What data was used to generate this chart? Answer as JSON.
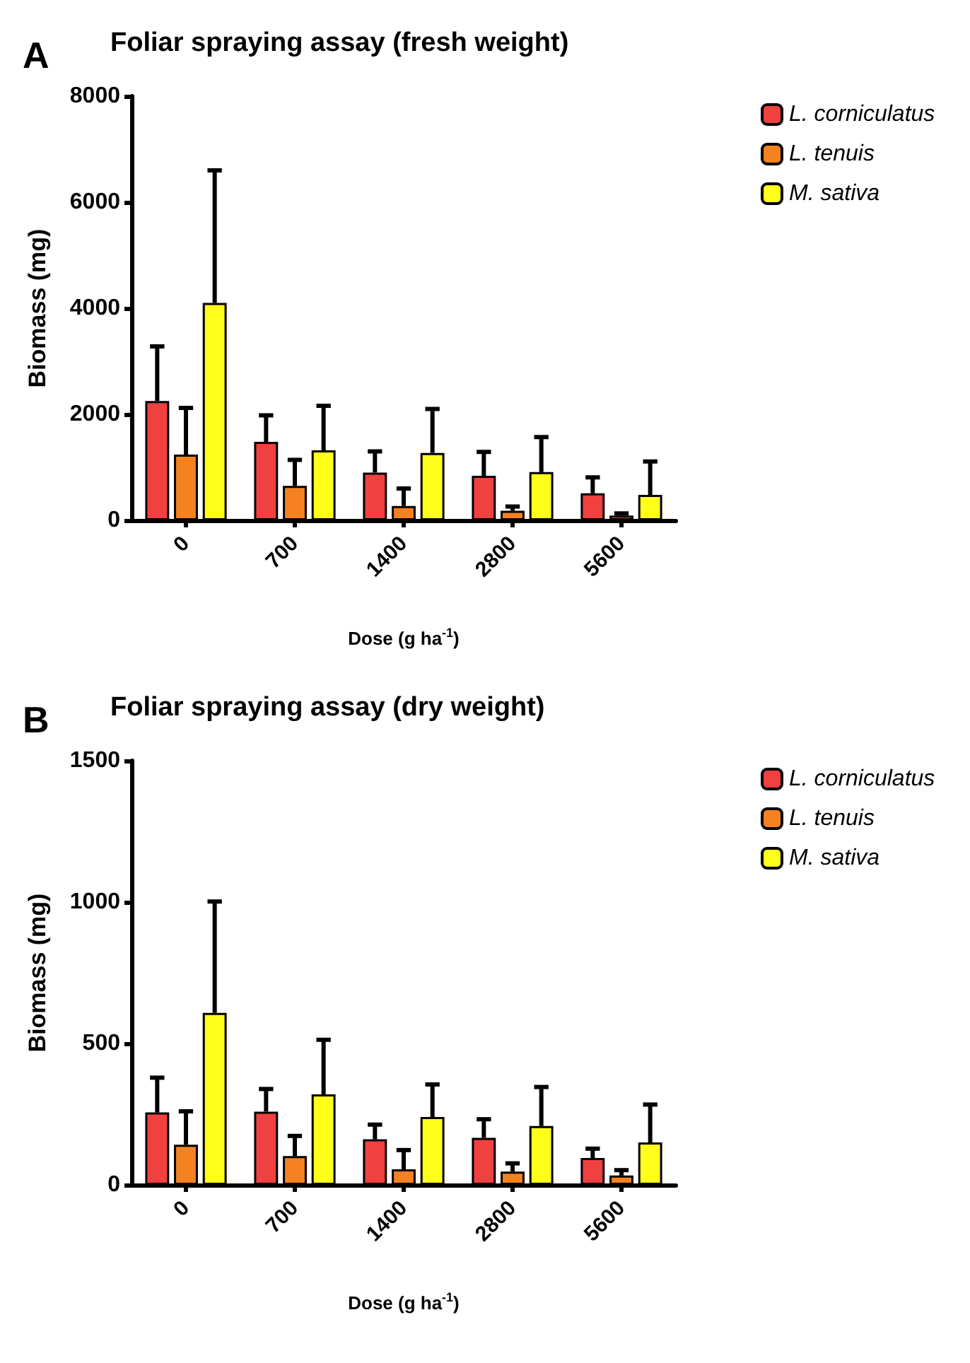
{
  "chart_data": [
    {
      "type": "bar",
      "title": "Foliar spraying assay (fresh weight)",
      "annotations": [
        "A"
      ],
      "xlabel": "Dose (g ha$^{-1}$)",
      "ylabel": "Biomass (mg)",
      "categories": [
        "0",
        "700",
        "1400",
        "2800",
        "5600"
      ],
      "ylim": [
        0,
        8000
      ],
      "yticks": [
        0,
        2000,
        4000,
        6000,
        8000
      ],
      "grid": false,
      "legend": "top right",
      "series": [
        {
          "name": "L. corniculatus",
          "color": "#f04040",
          "values": [
            2250,
            1480,
            900,
            840,
            510
          ],
          "errors": [
            [
              2250,
              3280
            ],
            [
              1480,
              1980
            ],
            [
              900,
              1300
            ],
            [
              840,
              1290
            ],
            [
              510,
              810
            ]
          ]
        },
        {
          "name": "L. tenuis",
          "color": "#f58220",
          "values": [
            1240,
            650,
            270,
            180,
            90
          ],
          "errors": [
            [
              1240,
              2120
            ],
            [
              650,
              1140
            ],
            [
              270,
              600
            ],
            [
              180,
              260
            ],
            [
              90,
              130
            ]
          ]
        },
        {
          "name": "M. sativa",
          "color": "#ffff1a",
          "values": [
            4100,
            1320,
            1270,
            910,
            480
          ],
          "errors": [
            [
              4100,
              6600
            ],
            [
              1320,
              2160
            ],
            [
              1270,
              2100
            ],
            [
              910,
              1570
            ],
            [
              480,
              1110
            ]
          ]
        }
      ]
    },
    {
      "type": "bar",
      "title": "Foliar spraying assay (dry weight)",
      "annotations": [
        "B"
      ],
      "xlabel": "Dose (g ha$^{-1}$)",
      "ylabel": "Biomass (mg)",
      "categories": [
        "0",
        "700",
        "1400",
        "2800",
        "5600"
      ],
      "ylim": [
        0,
        1500
      ],
      "yticks": [
        0,
        500,
        1000,
        1500
      ],
      "grid": false,
      "legend": "top right",
      "series": [
        {
          "name": "L. corniculatus",
          "color": "#f04040",
          "values": [
            256,
            259,
            161,
            166,
            95
          ],
          "errors": [
            [
              256,
              379
            ],
            [
              259,
              339
            ],
            [
              161,
              213
            ],
            [
              166,
              232
            ],
            [
              95,
              128
            ]
          ]
        },
        {
          "name": "L. tenuis",
          "color": "#f58220",
          "values": [
            142,
            102,
            55,
            47,
            33
          ],
          "errors": [
            [
              142,
              260
            ],
            [
              102,
              173
            ],
            [
              55,
              123
            ],
            [
              47,
              76
            ],
            [
              33,
              52
            ]
          ]
        },
        {
          "name": "M. sativa",
          "color": "#ffff1a",
          "values": [
            608,
            320,
            240,
            208,
            150
          ],
          "errors": [
            [
              608,
              1002
            ],
            [
              320,
              513
            ],
            [
              240,
              355
            ],
            [
              208,
              346
            ],
            [
              150,
              284
            ]
          ]
        }
      ]
    }
  ]
}
